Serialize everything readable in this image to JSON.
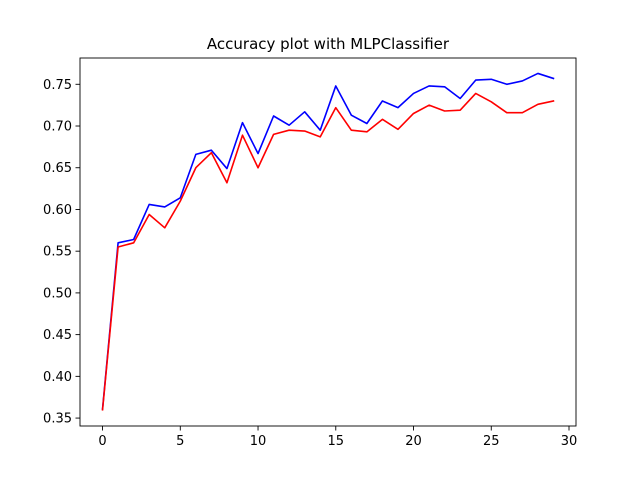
{
  "chart_data": {
    "type": "line",
    "title": "Accuracy plot with MLPClassifier",
    "xlabel": "",
    "ylabel": "",
    "xlim": [
      -1.45,
      30.45
    ],
    "ylim": [
      0.3405,
      0.7815
    ],
    "xticks": [
      0,
      5,
      10,
      15,
      20,
      25,
      30
    ],
    "xtick_labels": [
      "0",
      "5",
      "10",
      "15",
      "20",
      "25",
      "30"
    ],
    "yticks": [
      0.35,
      0.4,
      0.45,
      0.5,
      0.55,
      0.6,
      0.65,
      0.7,
      0.75
    ],
    "ytick_labels": [
      "0.35",
      "0.40",
      "0.45",
      "0.50",
      "0.55",
      "0.60",
      "0.65",
      "0.70",
      "0.75"
    ],
    "grid": false,
    "legend": false,
    "x": [
      0,
      1,
      2,
      3,
      4,
      5,
      6,
      7,
      8,
      9,
      10,
      11,
      12,
      13,
      14,
      15,
      16,
      17,
      18,
      19,
      20,
      21,
      22,
      23,
      24,
      25,
      26,
      27,
      28,
      29
    ],
    "series": [
      {
        "name": "blue series",
        "color": "#0000ff",
        "values": [
          0.361,
          0.56,
          0.564,
          0.606,
          0.603,
          0.614,
          0.666,
          0.671,
          0.649,
          0.704,
          0.667,
          0.712,
          0.701,
          0.717,
          0.695,
          0.748,
          0.713,
          0.703,
          0.73,
          0.722,
          0.739,
          0.748,
          0.747,
          0.733,
          0.755,
          0.756,
          0.75,
          0.754,
          0.763,
          0.757
        ]
      },
      {
        "name": "red series",
        "color": "#ff0000",
        "values": [
          0.36,
          0.555,
          0.56,
          0.594,
          0.578,
          0.61,
          0.65,
          0.668,
          0.632,
          0.689,
          0.65,
          0.69,
          0.695,
          0.694,
          0.687,
          0.722,
          0.695,
          0.693,
          0.708,
          0.696,
          0.715,
          0.725,
          0.718,
          0.719,
          0.739,
          0.729,
          0.716,
          0.716,
          0.726,
          0.73
        ]
      }
    ]
  }
}
